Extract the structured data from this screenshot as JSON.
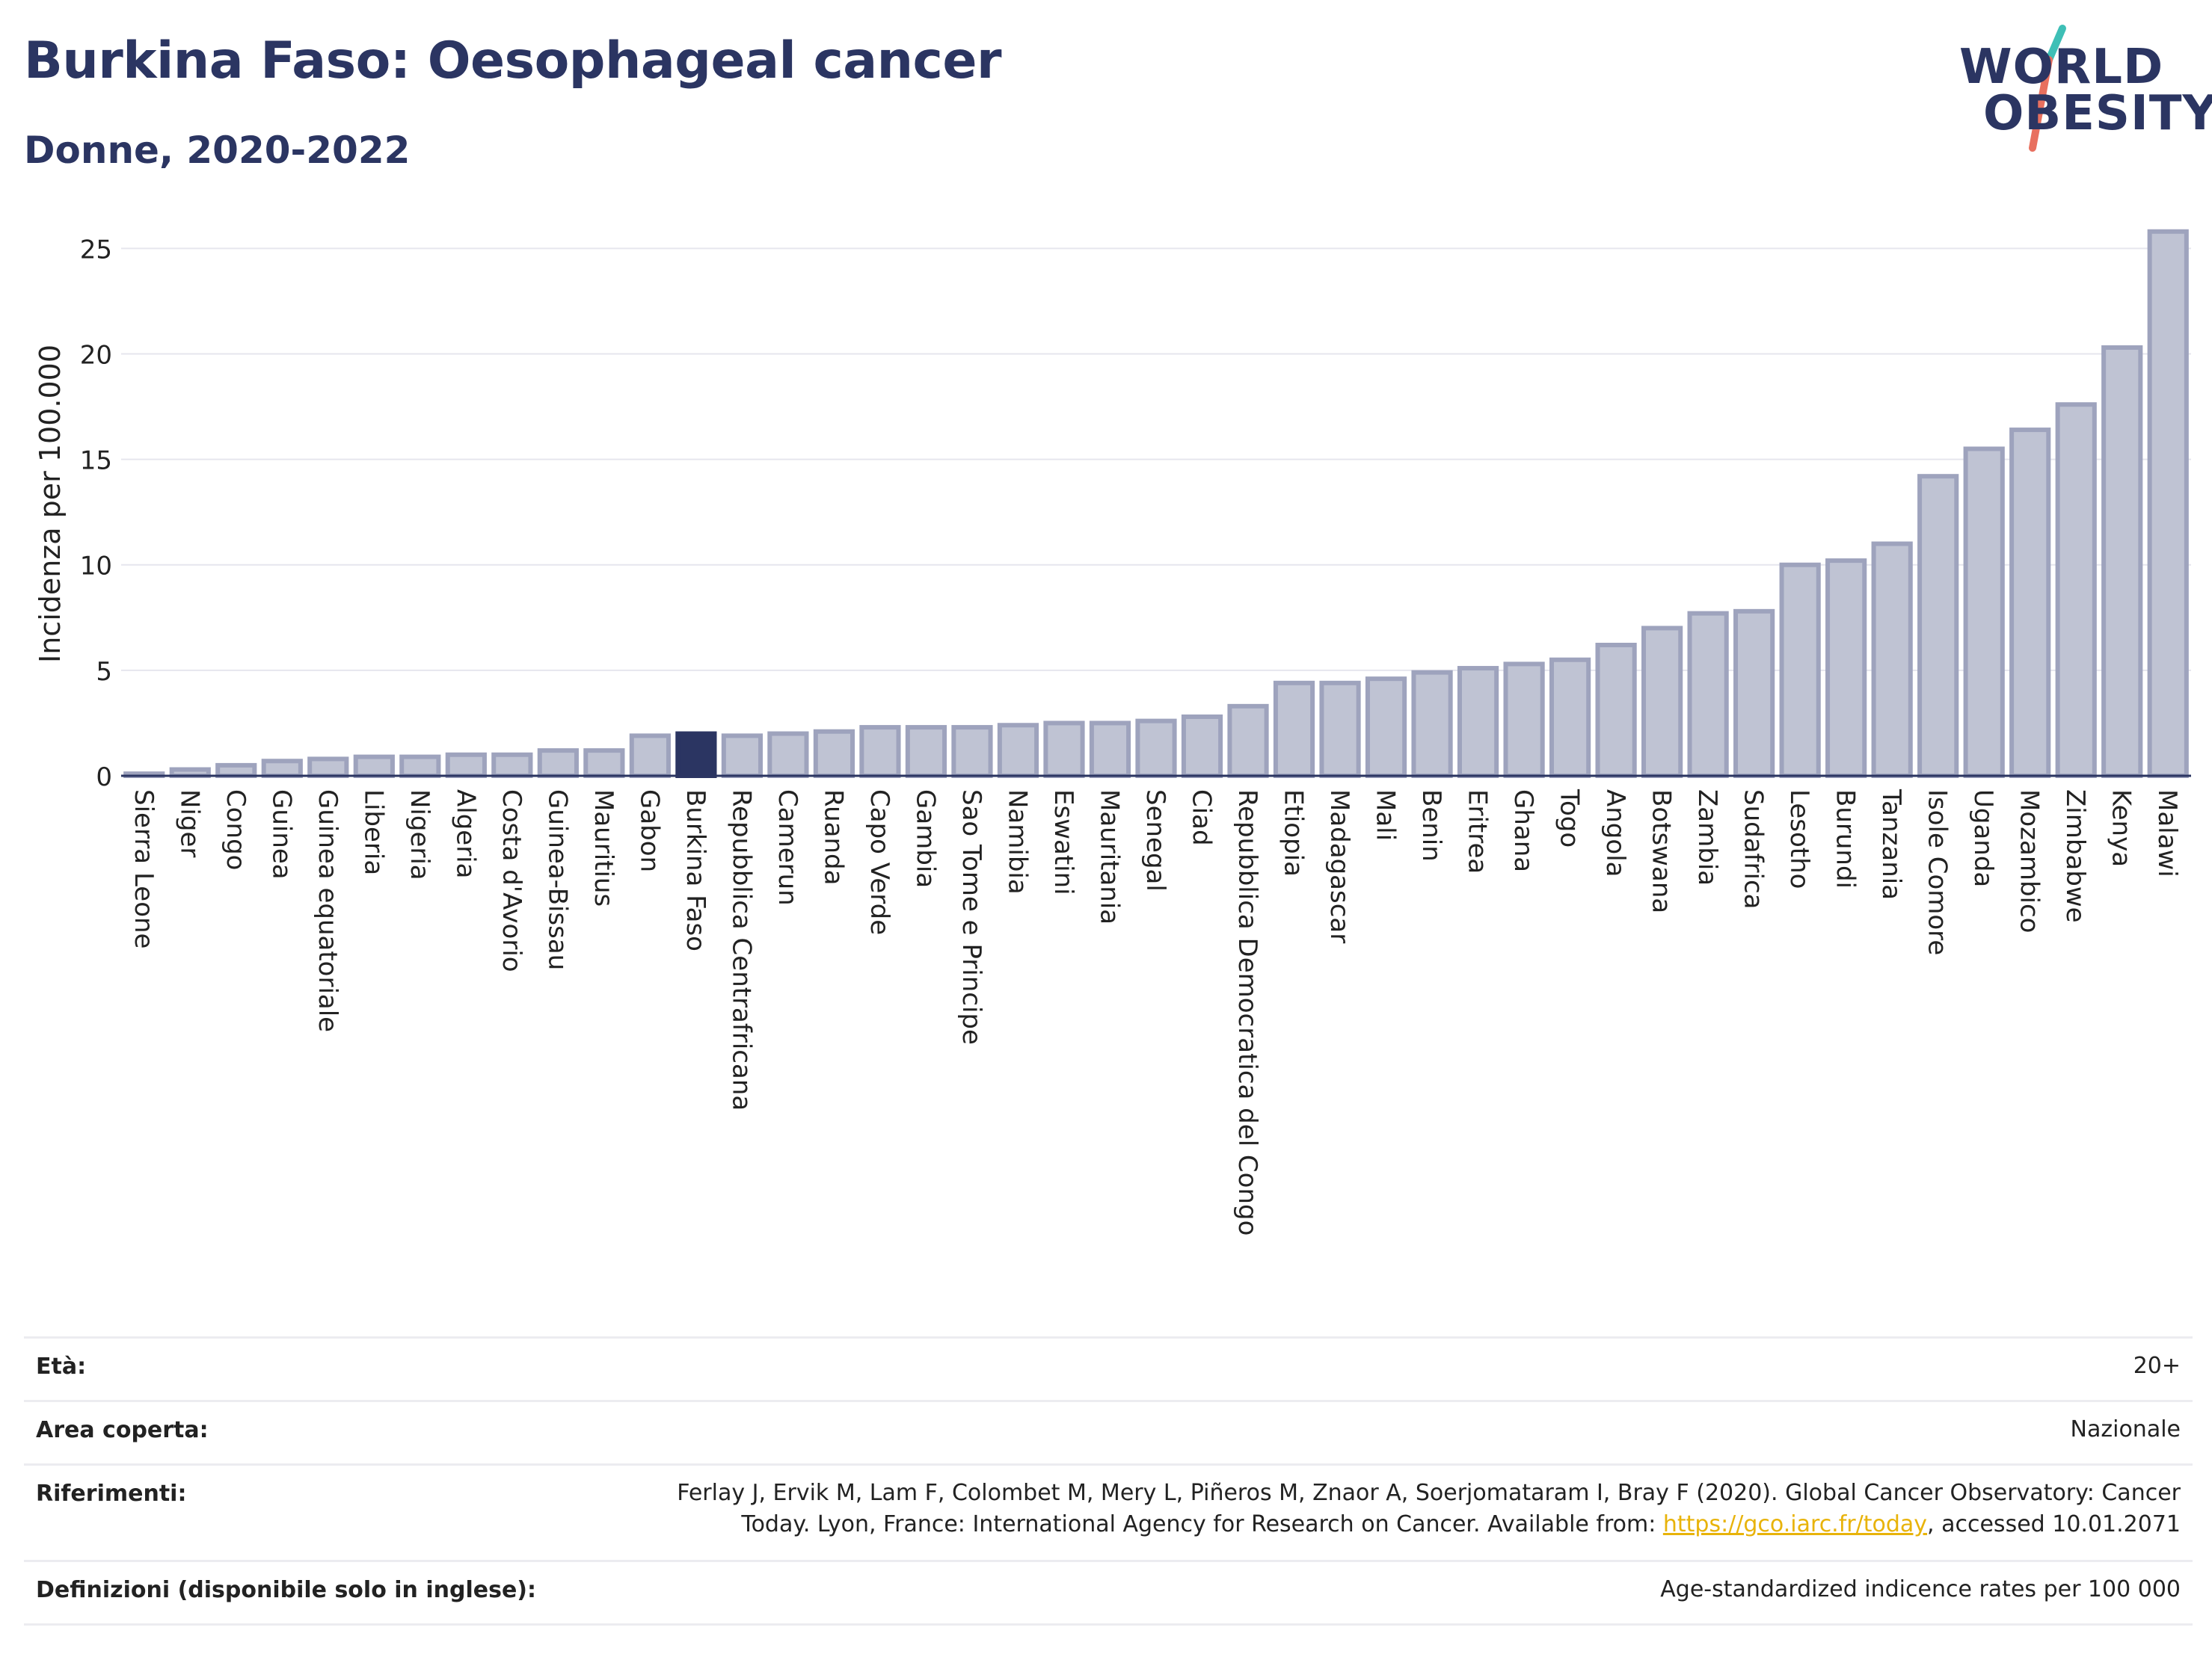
{
  "header": {
    "title": "Burkina Faso: Oesophageal cancer",
    "subtitle": "Donne, 2020-2022",
    "logo": {
      "line1": "WORLD",
      "line2": "OBESITY"
    }
  },
  "colors": {
    "bar": "#bfc3d3",
    "bar_outline": "#9ea3bd",
    "highlight": "#2b3562",
    "text": "#222222",
    "grid": "#e6e6ee",
    "logo_teal": "#3ebfb6",
    "logo_coral": "#e8705f"
  },
  "chart_data": {
    "type": "bar",
    "title": "Burkina Faso: Oesophageal cancer",
    "subtitle": "Donne, 2020-2022",
    "ylabel": "Incidenza per 100.000",
    "xlabel": "",
    "ylim": [
      0,
      26.5
    ],
    "yticks": [
      0,
      5,
      10,
      15,
      20,
      25
    ],
    "grid": true,
    "highlight_category": "Burkina Faso",
    "categories": [
      "Sierra Leone",
      "Niger",
      "Congo",
      "Guinea",
      "Guinea equatoriale",
      "Liberia",
      "Nigeria",
      "Algeria",
      "Costa d'Avorio",
      "Guinea-Bissau",
      "Mauritius",
      "Gabon",
      "Burkina Faso",
      "Repubblica Centrafricana",
      "Camerun",
      "Ruanda",
      "Capo Verde",
      "Gambia",
      "Sao Tome e Principe",
      "Namibia",
      "Eswatini",
      "Mauritania",
      "Senegal",
      "Ciad",
      "Repubblica Democratica del Congo",
      "Etiopia",
      "Madagascar",
      "Mali",
      "Benin",
      "Eritrea",
      "Ghana",
      "Togo",
      "Angola",
      "Botswana",
      "Zambia",
      "Sudafrica",
      "Lesotho",
      "Burundi",
      "Tanzania",
      "Isole Comore",
      "Uganda",
      "Mozambico",
      "Zimbabwe",
      "Kenya",
      "Malawi"
    ],
    "values": [
      0.1,
      0.3,
      0.5,
      0.7,
      0.8,
      0.9,
      0.9,
      1.0,
      1.0,
      1.2,
      1.2,
      1.9,
      2.0,
      1.9,
      2.0,
      2.1,
      2.3,
      2.3,
      2.3,
      2.4,
      2.5,
      2.5,
      2.6,
      2.8,
      3.3,
      4.4,
      4.4,
      4.6,
      4.9,
      5.1,
      5.3,
      5.5,
      6.2,
      7.0,
      7.7,
      7.8,
      10.0,
      10.2,
      11.0,
      14.2,
      15.5,
      16.4,
      17.6,
      20.3,
      25.8
    ]
  },
  "meta": [
    {
      "label": "Età:",
      "value": [
        "20+"
      ]
    },
    {
      "label": "Area coperta:",
      "value": [
        "Nazionale"
      ]
    },
    {
      "label": "Riferimenti:",
      "value": [
        "Ferlay J, Ervik M, Lam F, Colombet M, Mery L, Piñeros M, Znaor A, Soerjomataram I, Bray F (2020). Global Cancer Observatory: Cancer",
        "Today. Lyon, France: International Agency for Research on Cancer. Available from: "
      ],
      "link": "https://gco.iarc.fr/today",
      "after_link": ", accessed 10.01.2071"
    },
    {
      "label": "Definizioni (disponibile solo in inglese):",
      "value": [
        "Age-standardized indicence rates per 100 000"
      ]
    }
  ]
}
